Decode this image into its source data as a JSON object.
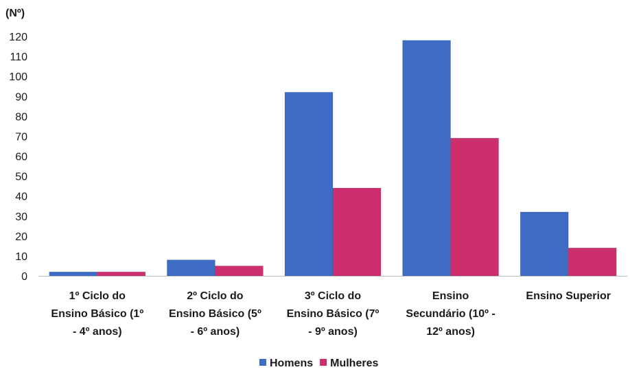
{
  "chart_data": {
    "type": "bar",
    "ylabel": "(Nº)",
    "ylim": [
      0,
      120
    ],
    "yticks": [
      0,
      10,
      20,
      30,
      40,
      50,
      60,
      70,
      80,
      90,
      100,
      110,
      120
    ],
    "grid": false,
    "legend_position": "bottom",
    "categories": [
      [
        "1º Ciclo do",
        "Ensino Básico (1º",
        "- 4º anos)"
      ],
      [
        "2º Ciclo do",
        "Ensino Básico (5º",
        "- 6º anos)"
      ],
      [
        "3º Ciclo do",
        "Ensino Básico (7º",
        "- 9º anos)"
      ],
      [
        "Ensino",
        "Secundário (10º -",
        "12º anos)"
      ],
      [
        "Ensino Superior"
      ]
    ],
    "series": [
      {
        "name": "Homens",
        "color": "#3e6bc4",
        "values": [
          2,
          8,
          92,
          118,
          32
        ]
      },
      {
        "name": "Mulheres",
        "color": "#cc2e6e",
        "values": [
          2,
          5,
          44,
          69,
          14
        ]
      }
    ]
  }
}
